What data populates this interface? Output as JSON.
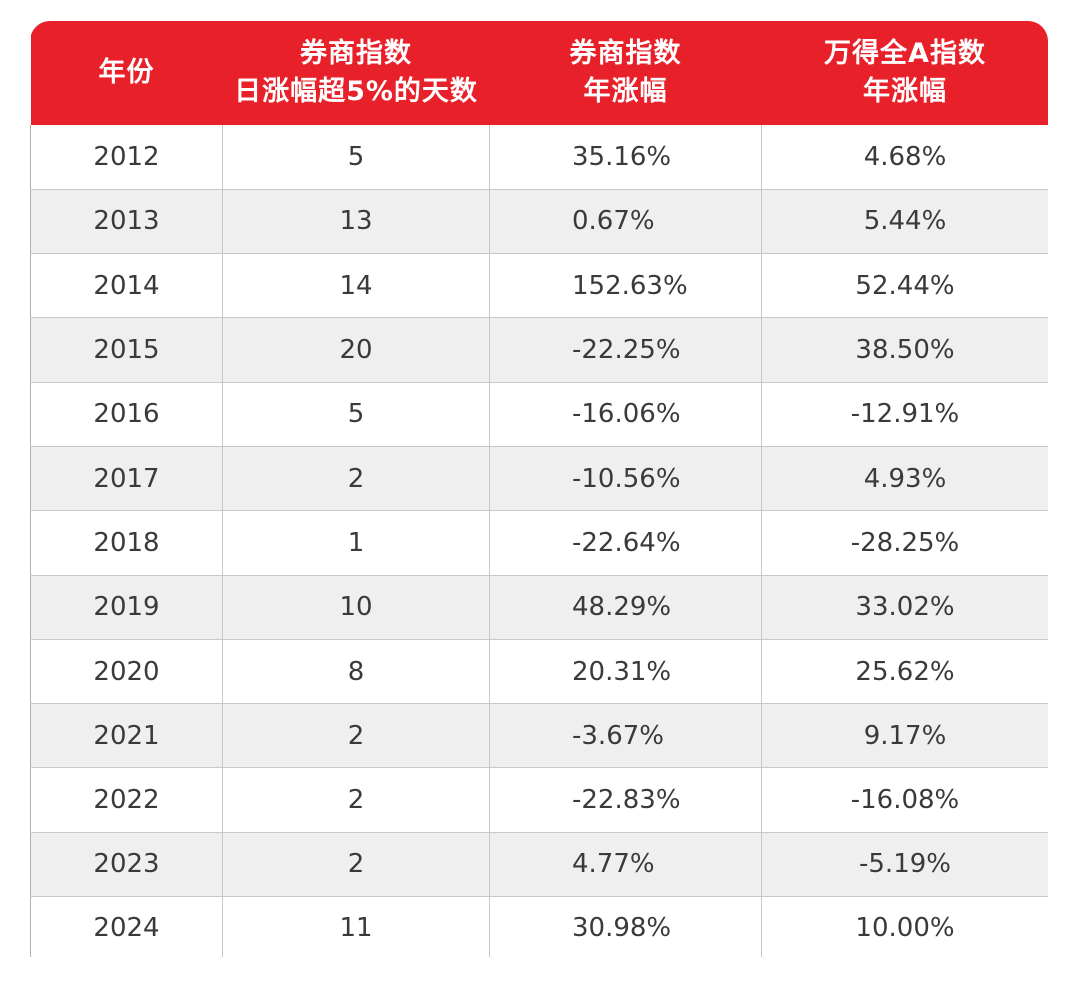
{
  "colors": {
    "header_bg": "#e8202a",
    "header_text": "#ffffff",
    "row_alt": "#efefef",
    "grid": "#c8c8c8"
  },
  "chart_data": {
    "type": "table",
    "columns": [
      {
        "key": "year",
        "lines": [
          "年份"
        ]
      },
      {
        "key": "days",
        "lines": [
          "券商指数",
          "日涨幅超5%的天数"
        ]
      },
      {
        "key": "sec",
        "lines": [
          "券商指数",
          "年涨幅"
        ]
      },
      {
        "key": "wind",
        "lines": [
          "万得全A指数",
          "年涨幅"
        ]
      }
    ],
    "rows": [
      {
        "year": "2012",
        "days": "5",
        "sec": "35.16%",
        "wind": "4.68%"
      },
      {
        "year": "2013",
        "days": "13",
        "sec": "0.67%",
        "wind": "5.44%"
      },
      {
        "year": "2014",
        "days": "14",
        "sec": "152.63%",
        "wind": "52.44%"
      },
      {
        "year": "2015",
        "days": "20",
        "sec": "-22.25%",
        "wind": "38.50%"
      },
      {
        "year": "2016",
        "days": "5",
        "sec": "-16.06%",
        "wind": "-12.91%"
      },
      {
        "year": "2017",
        "days": "2",
        "sec": "-10.56%",
        "wind": "4.93%"
      },
      {
        "year": "2018",
        "days": "1",
        "sec": "-22.64%",
        "wind": "-28.25%"
      },
      {
        "year": "2019",
        "days": "10",
        "sec": "48.29%",
        "wind": "33.02%"
      },
      {
        "year": "2020",
        "days": "8",
        "sec": "20.31%",
        "wind": "25.62%"
      },
      {
        "year": "2021",
        "days": "2",
        "sec": "-3.67%",
        "wind": "9.17%"
      },
      {
        "year": "2022",
        "days": "2",
        "sec": "-22.83%",
        "wind": "-16.08%"
      },
      {
        "year": "2023",
        "days": "2",
        "sec": "4.77%",
        "wind": "-5.19%"
      },
      {
        "year": "2024",
        "days": "11",
        "sec": "30.98%",
        "wind": "10.00%"
      }
    ]
  }
}
